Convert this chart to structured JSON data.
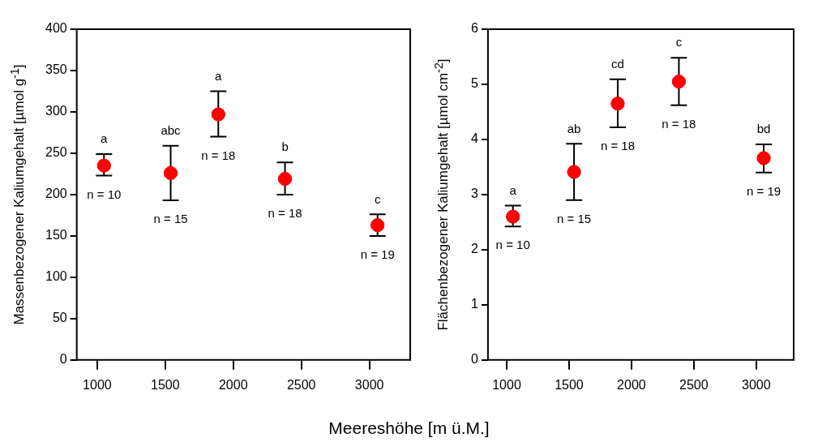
{
  "chart_data": [
    {
      "type": "scatter",
      "ylabel": "Massenbezogener Kaliumgehalt [µmol g$^{-1}$]",
      "xlabel": "Meereshöhe [m ü.M.]",
      "x": [
        1050,
        1540,
        1890,
        2380,
        3060
      ],
      "values": [
        235,
        226,
        297,
        219,
        163
      ],
      "errors": [
        [
          223,
          249
        ],
        [
          193,
          259
        ],
        [
          270,
          325
        ],
        [
          200,
          239
        ],
        [
          150,
          176
        ]
      ],
      "color": "#ff0000",
      "marker": "circle",
      "xlim": [
        850,
        3300
      ],
      "xticks": [
        1000,
        1500,
        2000,
        2500,
        3000
      ],
      "ylim": [
        0,
        400
      ],
      "yticks": [
        0,
        50,
        100,
        150,
        200,
        250,
        300,
        350,
        400
      ],
      "annotations": [
        "a",
        "abc",
        "a",
        "b",
        "c",
        "n = 10",
        "n = 15",
        "n = 18",
        "n = 18",
        "n = 19"
      ]
    },
    {
      "type": "scatter",
      "ylabel": "Flächenbezogener Kaliumgehalt [µmol cm$^{-2}$]",
      "x": [
        1050,
        1540,
        1890,
        2380,
        3060
      ],
      "values": [
        2.6,
        3.41,
        4.65,
        5.05,
        3.66
      ],
      "errors": [
        [
          2.42,
          2.8
        ],
        [
          2.9,
          3.92
        ],
        [
          4.22,
          5.09
        ],
        [
          4.62,
          5.48
        ],
        [
          3.4,
          3.91
        ]
      ],
      "color": "#ff0000",
      "marker": "circle",
      "xlim": [
        850,
        3300
      ],
      "xticks": [
        1000,
        1500,
        2000,
        2500,
        3000
      ],
      "ylim": [
        0,
        6
      ],
      "yticks": [
        0,
        1,
        2,
        3,
        4,
        5,
        6
      ],
      "annotations": [
        "a",
        "ab",
        "cd",
        "c",
        "bd",
        "n = 10",
        "n = 15",
        "n = 18",
        "n = 18",
        "n = 19"
      ]
    }
  ]
}
